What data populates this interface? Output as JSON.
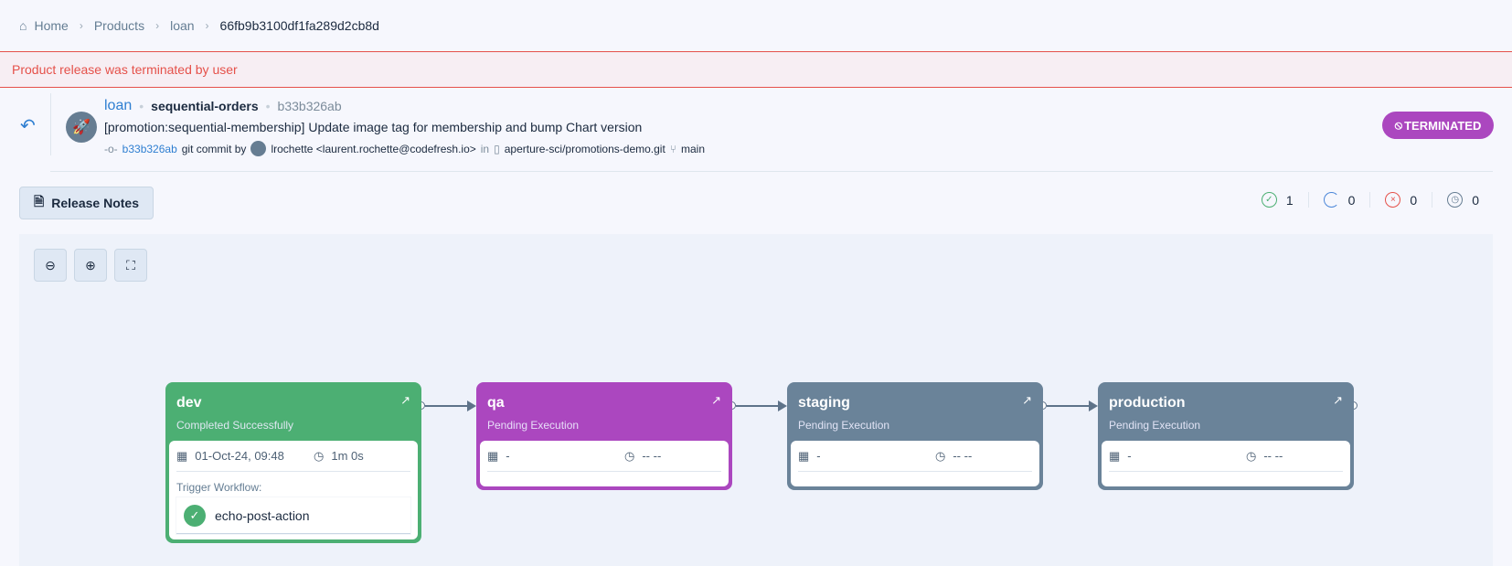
{
  "breadcrumb": {
    "home": "Home",
    "products": "Products",
    "product": "loan",
    "release_id": "66fb9b3100df1fa289d2cb8d"
  },
  "banner": {
    "message": "Product release was terminated by user"
  },
  "header": {
    "product": "loan",
    "environment": "sequential-orders",
    "commit_short": "b33b326ab",
    "commit_message": "[promotion:sequential-membership] Update image tag for membership and bump Chart version",
    "commit_label": "git commit by",
    "author": "lrochette <laurent.rochette@codefresh.io>",
    "in": "in",
    "repo": "aperture-sci/promotions-demo.git",
    "branch": "main",
    "status": "TERMINATED",
    "status_color": "#ab47bf"
  },
  "toolbar": {
    "release_notes": "Release Notes"
  },
  "stats": {
    "succeeded": "1",
    "running": "0",
    "failed": "0",
    "pending": "0"
  },
  "canvas": {
    "zoom_out": "zoom-out-icon",
    "zoom_in": "zoom-in-icon",
    "fit": "fit-screen-icon"
  },
  "environments": [
    {
      "name": "dev",
      "status": "Completed Successfully",
      "date": "01-Oct-24, 09:48",
      "duration": "1m 0s",
      "color": "#4caf73",
      "trigger_label": "Trigger Workflow:",
      "workflow": "echo-post-action"
    },
    {
      "name": "qa",
      "status": "Pending Execution",
      "date": "-",
      "duration": "-- --",
      "color": "#ab47bf"
    },
    {
      "name": "staging",
      "status": "Pending Execution",
      "date": "-",
      "duration": "-- --",
      "color": "#6a8399"
    },
    {
      "name": "production",
      "status": "Pending Execution",
      "date": "-",
      "duration": "-- --",
      "color": "#6a8399"
    }
  ]
}
